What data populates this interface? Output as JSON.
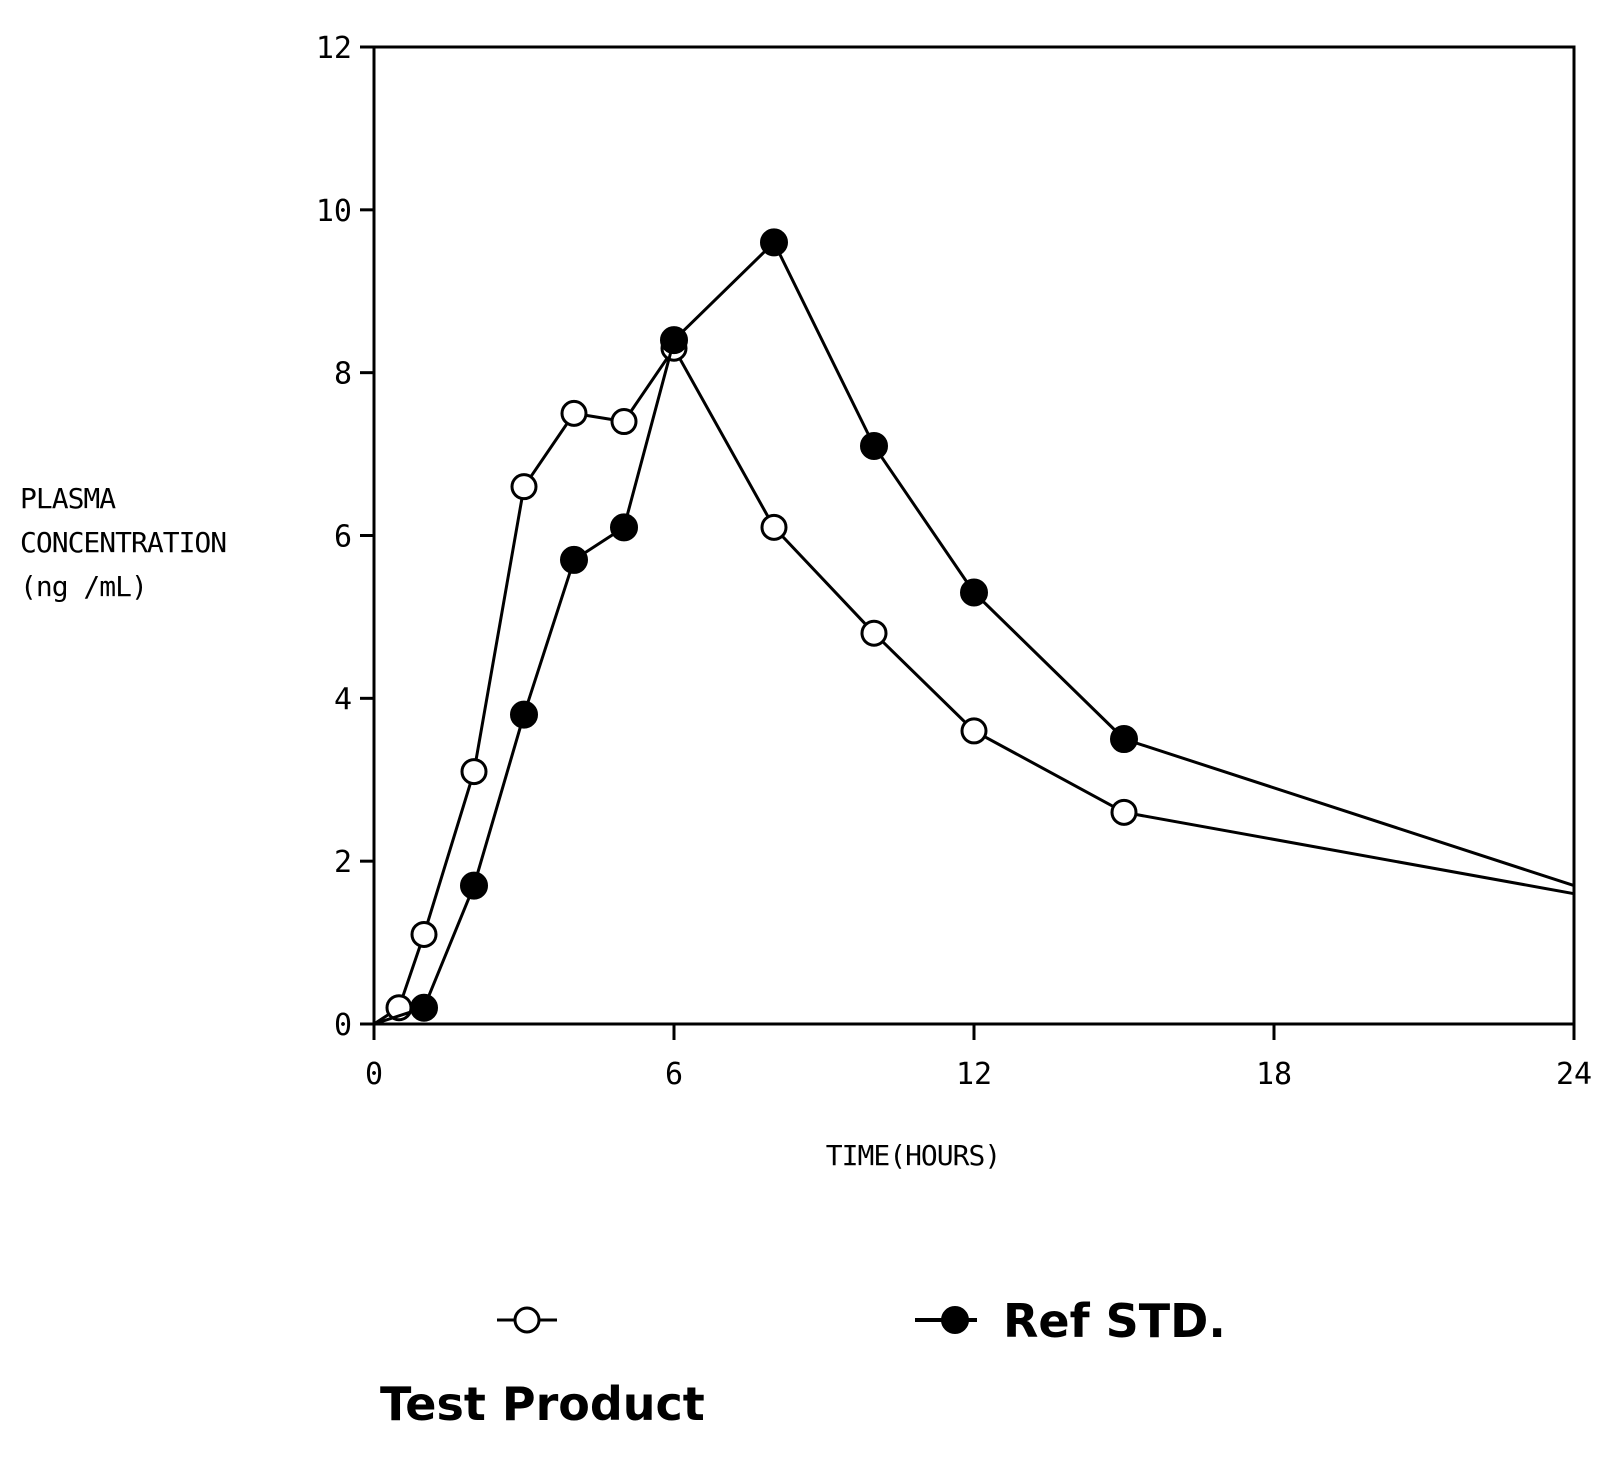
{
  "chart_data": {
    "type": "line",
    "xlabel": "TIME(HOURS)",
    "ylabel_lines": [
      "PLASMA",
      "CONCENTRATION",
      "(ng /mL)"
    ],
    "xlim": [
      0,
      24
    ],
    "ylim": [
      0,
      12
    ],
    "xticks": [
      0,
      6,
      12,
      18,
      24
    ],
    "yticks": [
      0,
      2,
      4,
      6,
      8,
      10,
      12
    ],
    "grid": false,
    "legend_position": "bottom",
    "series": [
      {
        "name": "Test Product",
        "marker": "open-circle",
        "color": "#000000",
        "x": [
          0,
          0.5,
          1,
          2,
          3,
          4,
          5,
          6,
          8,
          10,
          12,
          15,
          24
        ],
        "y": [
          0,
          0.2,
          1.1,
          3.1,
          6.6,
          7.5,
          7.4,
          8.3,
          6.1,
          4.8,
          3.6,
          2.6,
          1.6
        ]
      },
      {
        "name": "Ref STD.",
        "marker": "filled-circle",
        "color": "#000000",
        "x": [
          0,
          1,
          2,
          3,
          4,
          5,
          6,
          8,
          10,
          12,
          15,
          24
        ],
        "y": [
          0,
          0.2,
          1.7,
          3.8,
          5.7,
          6.1,
          8.4,
          9.6,
          7.1,
          5.3,
          3.5,
          1.7
        ]
      }
    ]
  }
}
